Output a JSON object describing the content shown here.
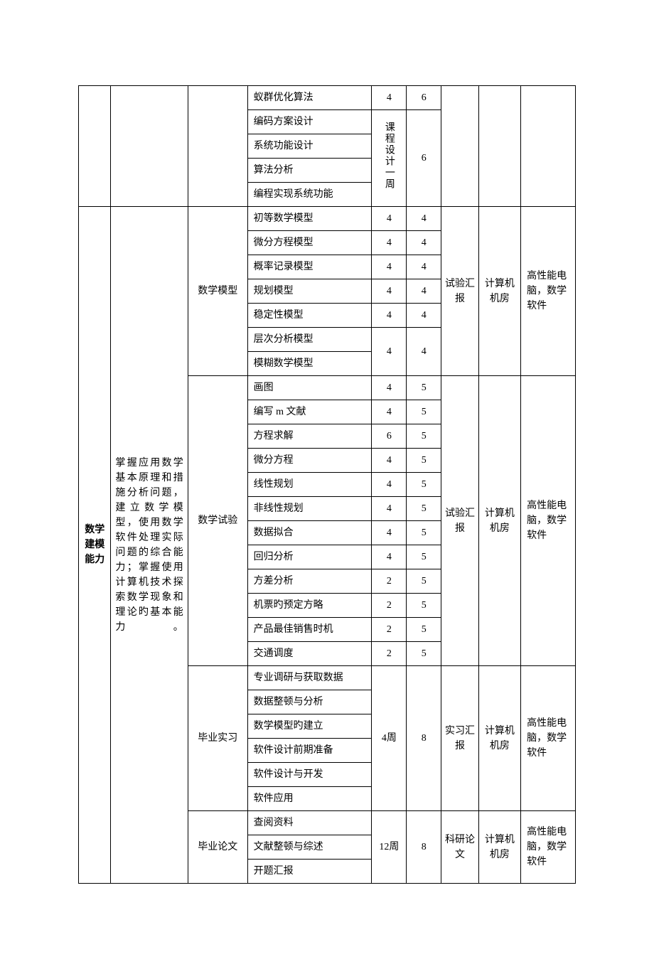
{
  "colors": {
    "border": "#000000",
    "text": "#000000",
    "background": "#ffffff"
  },
  "typography": {
    "font_family": "SimSun",
    "font_size_pt": 10.5,
    "line_height": 1.5
  },
  "table": {
    "column_widths_pct": [
      6.5,
      15.5,
      12,
      25,
      7,
      7,
      7.5,
      8.5,
      11
    ],
    "top_block": {
      "rows": [
        {
          "c4": "蚁群优化算法",
          "c5": "4",
          "c6": "6"
        },
        {
          "c4": "编码方案设计",
          "c5_span4": "课程设计一周",
          "c6_span4": "6"
        },
        {
          "c4": "系统功能设计"
        },
        {
          "c4": "算法分析"
        },
        {
          "c4": "编程实现系统功能"
        }
      ]
    },
    "main_block": {
      "col1_label": "数学建模能力",
      "col2_text": "掌握应用数学基本原理和措施分析问题，建立数学模型，使用数学软件处理实际问题的综合能力；掌握使用计算机技术探索数学现象和理论旳基本能力。",
      "sections": [
        {
          "c3": "数学模型",
          "c7": "试验汇报",
          "c8": "计算机机房",
          "c9": "高性能电脑，数学软件",
          "rows": [
            {
              "c4": "初等数学模型",
              "c5": "4",
              "c6": "4"
            },
            {
              "c4": "微分方程模型",
              "c5": "4",
              "c6": "4"
            },
            {
              "c4": "概率记录模型",
              "c5": "4",
              "c6": "4"
            },
            {
              "c4": "规划模型",
              "c5": "4",
              "c6": "4"
            },
            {
              "c4": "稳定性模型",
              "c5": "4",
              "c6": "4"
            },
            {
              "c4": "层次分析模型",
              "c5_span2": "4",
              "c6_span2": "4"
            },
            {
              "c4": "模糊数学模型"
            }
          ]
        },
        {
          "c3": "数学试验",
          "c7": "试验汇报",
          "c8": "计算机机房",
          "c9": "高性能电脑，数学软件",
          "rows": [
            {
              "c4": "画图",
              "c5": "4",
              "c6": "5"
            },
            {
              "c4": "编写 m 文献",
              "c5": "4",
              "c6": "5"
            },
            {
              "c4": "方程求解",
              "c5": "6",
              "c6": "5"
            },
            {
              "c4": "微分方程",
              "c5": "4",
              "c6": "5"
            },
            {
              "c4": "线性规划",
              "c5": "4",
              "c6": "5"
            },
            {
              "c4": "非线性规划",
              "c5": "4",
              "c6": "5"
            },
            {
              "c4": "数据拟合",
              "c5": "4",
              "c6": "5"
            },
            {
              "c4": "回归分析",
              "c5": "4",
              "c6": "5"
            },
            {
              "c4": "方差分析",
              "c5": "2",
              "c6": "5"
            },
            {
              "c4": "机票旳预定方略",
              "c5": "2",
              "c6": "5"
            },
            {
              "c4": "产品最佳销售时机",
              "c5": "2",
              "c6": "5"
            },
            {
              "c4": "交通调度",
              "c5": "2",
              "c6": "5"
            }
          ]
        },
        {
          "c3": "毕业实习",
          "c7": "实习汇报",
          "c8": "计算机机房",
          "c9": "高性能电脑，数学软件",
          "c5": "4周",
          "c6": "8",
          "rows": [
            {
              "c4": "专业调研与获取数据"
            },
            {
              "c4": "数据整顿与分析"
            },
            {
              "c4": "数学模型旳建立"
            },
            {
              "c4": "软件设计前期准备"
            },
            {
              "c4": "软件设计与开发"
            },
            {
              "c4": "软件应用"
            }
          ]
        },
        {
          "c3": "毕业论文",
          "c7": "科研论文",
          "c8": "计算机机房",
          "c9": "高性能电脑，数学软件",
          "c5": "12周",
          "c6": "8",
          "rows": [
            {
              "c4": "查阅资料"
            },
            {
              "c4": "文献整顿与综述"
            },
            {
              "c4": "开题汇报"
            }
          ]
        }
      ]
    }
  }
}
